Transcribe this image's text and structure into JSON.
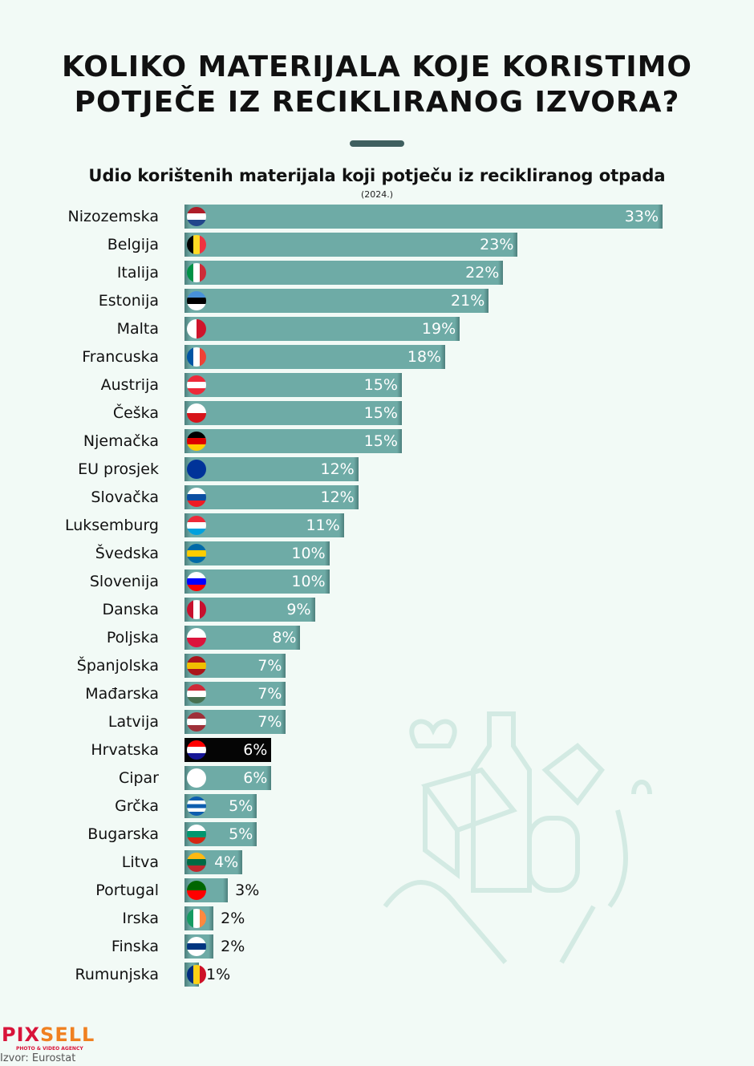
{
  "header": {
    "title_line1": "KOLIKO MATERIJALA KOJE KORISTIMO",
    "title_line2": "POTJEČE IZ RECIKLIRANOG IZVORA?"
  },
  "footer": {
    "logo_part1": "PIX",
    "logo_part2": "SELL",
    "logo_tagline": "PHOTO & VIDEO AGENCY",
    "source": "Izvor: Eurostat"
  },
  "chart_data": {
    "type": "bar",
    "orientation": "horizontal",
    "title": "Udio korištenih materijala koji potječu iz recikliranog otpada",
    "subtitle": "(2024.)",
    "unit": "%",
    "xlim": [
      0,
      33
    ],
    "highlight": "Hrvatska",
    "bar_color": "#6eaba6",
    "highlight_color": "#050505",
    "categories": [
      "Nizozemska",
      "Belgija",
      "Italija",
      "Estonija",
      "Malta",
      "Francuska",
      "Austrija",
      "Češka",
      "Njemačka",
      "EU prosjek",
      "Slovačka",
      "Luksemburg",
      "Švedska",
      "Slovenija",
      "Danska",
      "Poljska",
      "Španjolska",
      "Mađarska",
      "Latvija",
      "Hrvatska",
      "Cipar",
      "Grčka",
      "Bugarska",
      "Litva",
      "Portugal",
      "Irska",
      "Finska",
      "Rumunjska"
    ],
    "values": [
      33,
      23,
      22,
      21,
      19,
      18,
      15,
      15,
      15,
      12,
      12,
      11,
      10,
      10,
      9,
      8,
      7,
      7,
      7,
      6,
      6,
      5,
      5,
      4,
      3,
      2,
      2,
      1
    ],
    "labels": [
      "33%",
      "23%",
      "22%",
      "21%",
      "19%",
      "18%",
      "15%",
      "15%",
      "15%",
      "12%",
      "12%",
      "11%",
      "10%",
      "10%",
      "9%",
      "8%",
      "7%",
      "7%",
      "7%",
      "6%",
      "6%",
      "5%",
      "5%",
      "4%",
      "3%",
      "2%",
      "2%",
      "1%"
    ],
    "flags": [
      "h:#ae1c28,#fff,#21468b",
      "v:#000,#fdda24,#ef3340",
      "v:#009246,#fff,#ce2b37",
      "h:#4891d9,#000,#fff",
      "v:#fff,#cf142b",
      "v:#0055a4,#fff,#ef4135",
      "h:#ed2939,#fff,#ed2939",
      "h:#fff,#d7141a",
      "h:#000,#dd0000,#ffce00",
      "s:#003399",
      "h:#fff,#0b4ea2,#ee1c25",
      "h:#ed2939,#fff,#00a1de",
      "h:#006aa7,#fecc00,#006aa7",
      "h:#fff,#0000ff,#ff0000",
      "v:#c8102e,#fff,#c8102e",
      "h:#fff,#dc143c",
      "h:#aa151b,#f1bf00,#aa151b",
      "h:#ce2939,#fff,#477050",
      "h:#9e3039,#fff,#9e3039",
      "h:#ff0000,#fff,#171796",
      "s:#fff",
      "h:#0d5eaf,#fff,#0d5eaf,#fff,#0d5eaf",
      "h:#fff,#00966e,#d62612",
      "h:#fdb913,#006a44,#c1272d",
      "h:#006600,#ff0000",
      "v:#169b62,#fff,#ff883e",
      "h:#fff,#003580,#fff",
      "v:#002b7f,#fcd116,#ce1126"
    ]
  }
}
